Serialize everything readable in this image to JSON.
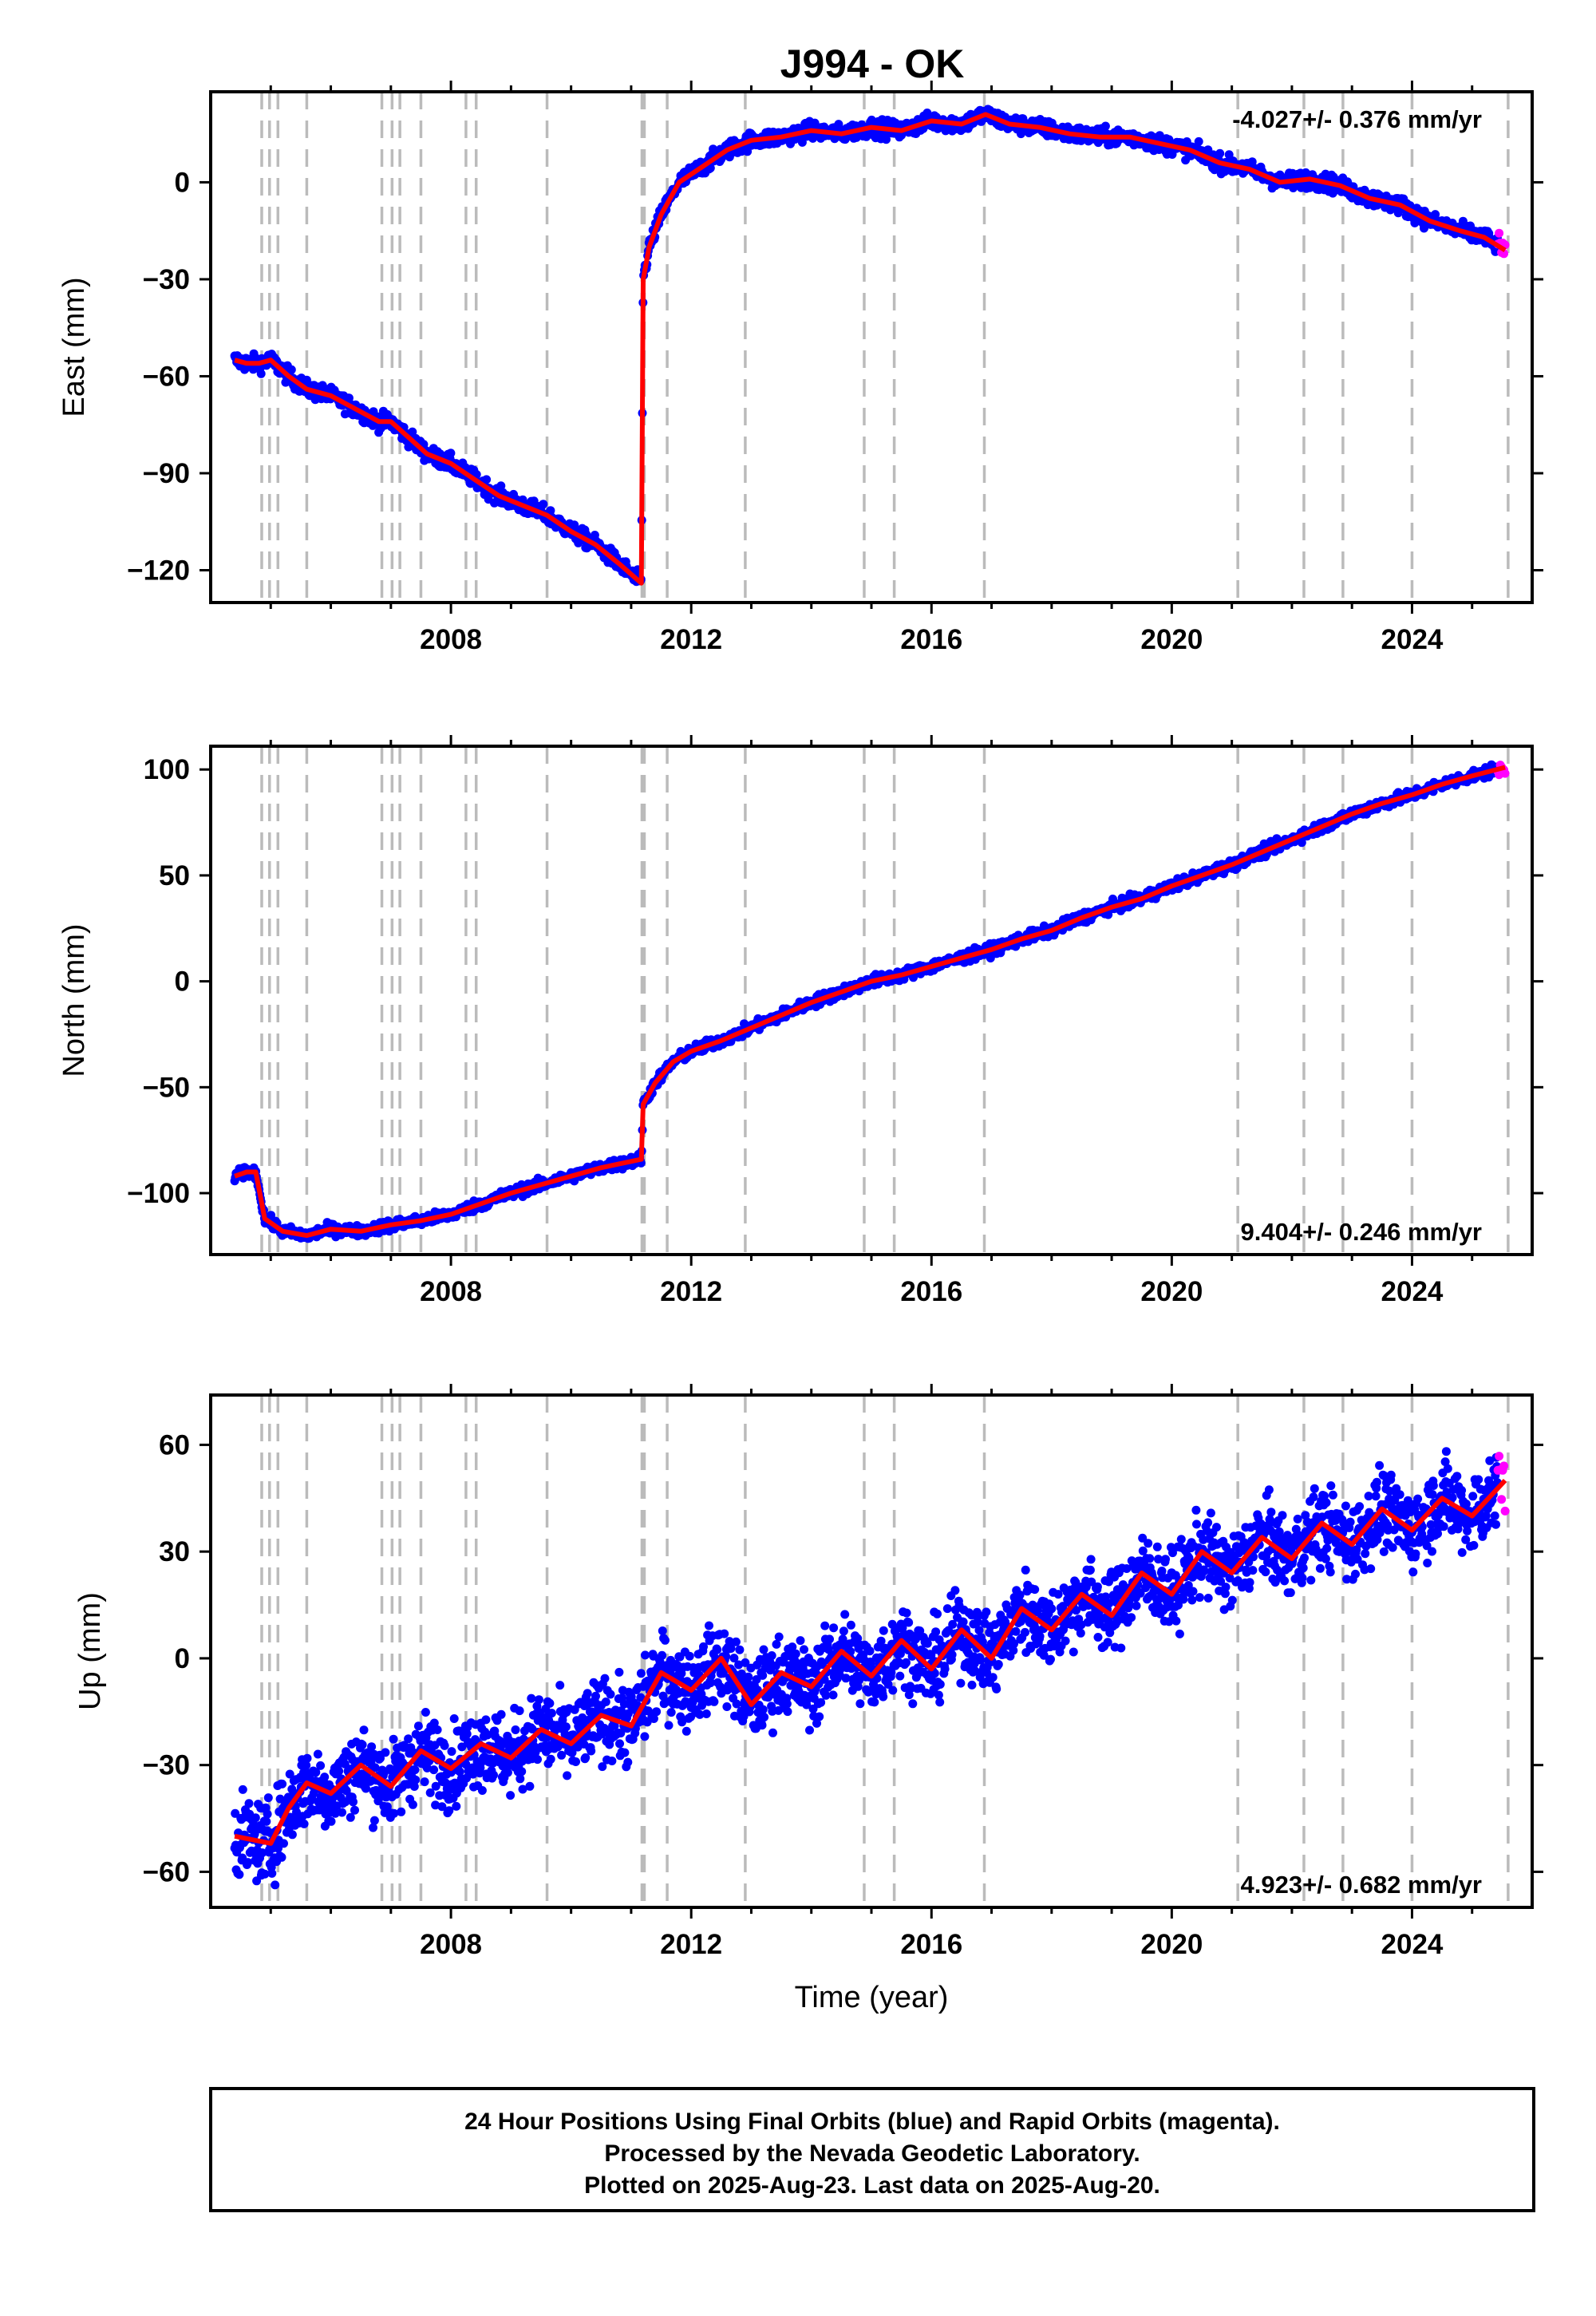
{
  "title": "J994 - OK",
  "colors": {
    "final": "#0000ff",
    "rapid": "#ff00ff",
    "model": "#ff0000",
    "events": "#bbbbbb"
  },
  "event_years": [
    2004.85,
    2004.98,
    2005.12,
    2005.6,
    2006.85,
    2007.02,
    2007.15,
    2007.5,
    2008.25,
    2008.42,
    2009.6,
    2011.18,
    2011.22,
    2011.6,
    2012.9,
    2014.88,
    2015.38,
    2016.88,
    2021.1,
    2022.2,
    2022.85,
    2024.0,
    2025.6
  ],
  "chart_data": [
    {
      "type": "scatter",
      "title": "J994 - OK",
      "ylabel": "East (mm)",
      "rate_label": "-4.027+/- 0.376 mm/yr",
      "rate_position": "top-right",
      "xlim": [
        2004.0,
        2026.0
      ],
      "ylim": [
        -130,
        28
      ],
      "x_ticks": [
        2008,
        2012,
        2016,
        2020,
        2024
      ],
      "y_ticks": [
        0,
        -30,
        -60,
        -90,
        -120
      ],
      "y_tick_labels": [
        "0",
        "−30",
        "−60",
        "−90",
        "−120"
      ],
      "series": [
        {
          "x": [
            2004.4,
            2004.6,
            2004.8,
            2005.0,
            2005.3,
            2005.6,
            2006.0,
            2006.4,
            2006.8,
            2007.0,
            2007.3,
            2007.6,
            2008.0,
            2008.4,
            2008.8,
            2009.2,
            2009.6,
            2010.0,
            2010.4,
            2010.8,
            2011.17,
            2011.2,
            2011.3,
            2011.5,
            2011.8,
            2012.2,
            2012.6,
            2013.0,
            2013.5,
            2014.0,
            2014.5,
            2015.0,
            2015.5,
            2016.0,
            2016.5,
            2016.9,
            2017.3,
            2017.8,
            2018.3,
            2018.8,
            2019.3,
            2019.8,
            2020.3,
            2020.8,
            2021.3,
            2021.8,
            2022.3,
            2022.8,
            2023.3,
            2023.8,
            2024.3,
            2024.8,
            2025.2,
            2025.55
          ],
          "y": [
            -55,
            -56,
            -56,
            -55,
            -60,
            -64,
            -66,
            -70,
            -74,
            -74,
            -79,
            -84,
            -87,
            -92,
            -97,
            -100,
            -103,
            -108,
            -112,
            -118,
            -124,
            -30,
            -20,
            -10,
            0,
            5,
            10,
            13,
            14,
            16,
            15,
            17,
            16,
            19,
            18,
            21,
            18,
            17,
            15,
            14,
            14,
            12,
            10,
            6,
            4,
            0,
            1,
            -1,
            -5,
            -7,
            -12,
            -15,
            -17,
            -21
          ]
        }
      ]
    },
    {
      "type": "scatter",
      "ylabel": "North (mm)",
      "rate_label": "9.404+/- 0.246 mm/yr",
      "rate_position": "bottom-right",
      "xlim": [
        2004.0,
        2026.0
      ],
      "ylim": [
        -129,
        111
      ],
      "x_ticks": [
        2008,
        2012,
        2016,
        2020,
        2024
      ],
      "y_ticks": [
        100,
        50,
        0,
        -50,
        -100
      ],
      "y_tick_labels": [
        "100",
        "50",
        "0",
        "−50",
        "−100"
      ],
      "series": [
        {
          "x": [
            2004.4,
            2004.6,
            2004.75,
            2004.9,
            2005.2,
            2005.6,
            2006.0,
            2006.5,
            2007.0,
            2007.5,
            2008.0,
            2008.5,
            2009.0,
            2009.5,
            2010.0,
            2010.5,
            2011.17,
            2011.2,
            2011.4,
            2011.7,
            2012.0,
            2012.5,
            2013.0,
            2013.5,
            2014.0,
            2014.5,
            2015.0,
            2015.5,
            2016.0,
            2016.5,
            2017.0,
            2017.5,
            2018.0,
            2018.5,
            2019.0,
            2019.5,
            2020.0,
            2020.5,
            2021.0,
            2021.5,
            2022.0,
            2022.5,
            2023.0,
            2023.5,
            2024.0,
            2024.5,
            2025.0,
            2025.55
          ],
          "y": [
            -92,
            -90,
            -90,
            -112,
            -118,
            -120,
            -117,
            -118,
            -115,
            -113,
            -110,
            -105,
            -100,
            -96,
            -92,
            -88,
            -84,
            -58,
            -48,
            -38,
            -33,
            -28,
            -22,
            -16,
            -10,
            -5,
            0,
            3,
            7,
            11,
            15,
            20,
            24,
            30,
            35,
            39,
            45,
            50,
            55,
            61,
            67,
            73,
            79,
            84,
            88,
            93,
            97,
            101
          ]
        }
      ]
    },
    {
      "type": "scatter",
      "ylabel": "Up (mm)",
      "xlabel": "Time (year)",
      "rate_label": "4.923+/- 0.682 mm/yr",
      "rate_position": "bottom-right",
      "xlim": [
        2004.0,
        2026.0
      ],
      "ylim": [
        -70,
        74
      ],
      "x_ticks": [
        2008,
        2012,
        2016,
        2020,
        2024
      ],
      "y_ticks": [
        60,
        30,
        0,
        -30,
        -60
      ],
      "y_tick_labels": [
        "60",
        "30",
        "0",
        "−30",
        "−60"
      ],
      "series": [
        {
          "x": [
            2004.4,
            2004.7,
            2005.0,
            2005.3,
            2005.6,
            2006.0,
            2006.5,
            2007.0,
            2007.5,
            2008.0,
            2008.5,
            2009.0,
            2009.5,
            2010.0,
            2010.5,
            2011.0,
            2011.5,
            2012.0,
            2012.5,
            2013.0,
            2013.5,
            2014.0,
            2014.5,
            2015.0,
            2015.5,
            2016.0,
            2016.5,
            2017.0,
            2017.5,
            2018.0,
            2018.5,
            2019.0,
            2019.5,
            2020.0,
            2020.5,
            2021.0,
            2021.5,
            2022.0,
            2022.5,
            2023.0,
            2023.5,
            2024.0,
            2024.5,
            2025.0,
            2025.55
          ],
          "y": [
            -50,
            -51,
            -52,
            -42,
            -35,
            -38,
            -30,
            -36,
            -26,
            -31,
            -24,
            -28,
            -20,
            -24,
            -16,
            -19,
            -4,
            -9,
            0,
            -13,
            -4,
            -8,
            2,
            -5,
            5,
            -3,
            8,
            0,
            14,
            8,
            18,
            12,
            24,
            18,
            30,
            24,
            34,
            28,
            38,
            32,
            42,
            36,
            45,
            40,
            50
          ]
        }
      ]
    }
  ],
  "footer": {
    "line1": "24 Hour Positions Using Final Orbits (blue) and Rapid Orbits (magenta).",
    "line2": "Processed by the Nevada Geodetic Laboratory.",
    "line3": "Plotted on 2025-Aug-23. Last data on 2025-Aug-20."
  }
}
